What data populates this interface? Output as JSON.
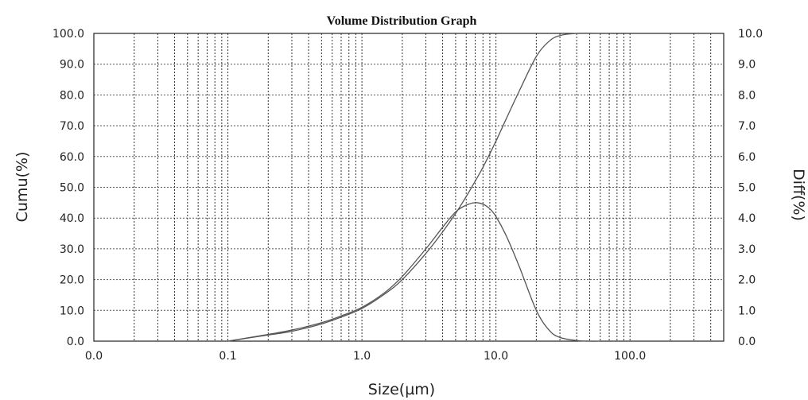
{
  "chart_data": {
    "type": "line",
    "title": "Volume Distribution Graph",
    "xlabel": "Size(µm)",
    "ylabel_left": "Cumu(%)",
    "ylabel_right": "Diff(%)",
    "x_scale": "log",
    "xlim": [
      0.01,
      500
    ],
    "ylim_left": [
      0,
      100
    ],
    "ylim_right": [
      0,
      10
    ],
    "grid": true,
    "x_tick_labels": [
      "0.0",
      "0.1",
      "1.0",
      "10.0",
      "100.0"
    ],
    "x_tick_values": [
      0.01,
      0.1,
      1,
      10,
      100
    ],
    "y_left_tick_labels": [
      "0.0",
      "10.0",
      "20.0",
      "30.0",
      "40.0",
      "50.0",
      "60.0",
      "70.0",
      "80.0",
      "90.0",
      "100.0"
    ],
    "y_right_tick_labels": [
      "0.0",
      "1.0",
      "2.0",
      "3.0",
      "4.0",
      "5.0",
      "6.0",
      "7.0",
      "8.0",
      "9.0",
      "10.0"
    ],
    "series": [
      {
        "axis": "left",
        "x": [
          0.1,
          0.2,
          0.3,
          0.5,
          0.7,
          1.0,
          1.5,
          2.0,
          3.0,
          4.0,
          5.0,
          6.0,
          7.0,
          8.0,
          10.0,
          12.0,
          15.0,
          20.0,
          25.0,
          30.0,
          40.0,
          60.0
        ],
        "y": [
          0.0,
          2.0,
          3.2,
          5.6,
          7.8,
          10.6,
          15.5,
          20.0,
          28.5,
          35.5,
          41.5,
          47.0,
          52.0,
          56.5,
          65.0,
          72.5,
          81.5,
          92.5,
          97.5,
          99.3,
          100.0,
          100.0
        ]
      },
      {
        "axis": "right",
        "x": [
          0.1,
          0.2,
          0.3,
          0.5,
          0.7,
          1.0,
          1.5,
          2.0,
          3.0,
          4.0,
          5.0,
          6.0,
          7.0,
          8.0,
          9.0,
          10.0,
          12.0,
          15.0,
          20.0,
          25.0,
          30.0,
          40.0,
          50.0,
          60.0
        ],
        "y": [
          0.0,
          0.22,
          0.36,
          0.6,
          0.82,
          1.1,
          1.6,
          2.1,
          3.0,
          3.7,
          4.2,
          4.42,
          4.5,
          4.45,
          4.3,
          4.05,
          3.4,
          2.4,
          1.0,
          0.35,
          0.12,
          0.02,
          0.0,
          0.0
        ]
      }
    ]
  }
}
